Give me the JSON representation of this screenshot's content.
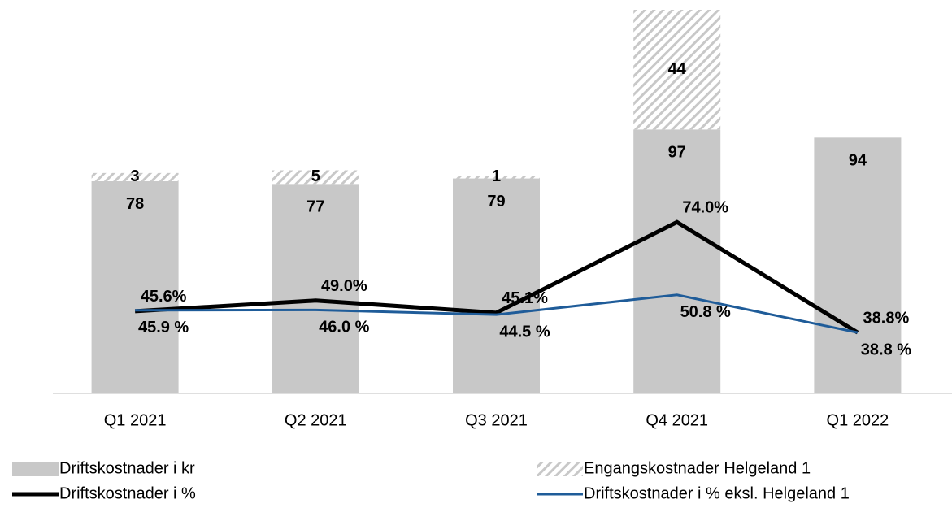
{
  "chart_data": {
    "type": "combo",
    "categories": [
      "Q1 2021",
      "Q2 2021",
      "Q3 2021",
      "Q4 2021",
      "Q1 2022"
    ],
    "ylim": [
      0,
      141
    ],
    "y2lim": [
      19.4,
      141.7
    ],
    "stacked": true,
    "series": [
      {
        "name": "Driftskostnader i kr",
        "type": "bar",
        "color": "#c8c8c8",
        "values": [
          78,
          77,
          79,
          97,
          94
        ]
      },
      {
        "name": "Engangskostnader Helgeland 1",
        "type": "bar",
        "color": "#c8c8c8",
        "pattern": "hatch",
        "values": [
          3,
          5,
          1,
          44,
          null
        ]
      },
      {
        "name": "Driftskostnader i %",
        "type": "line",
        "axis": "y2",
        "color": "#000000",
        "width": 5,
        "values": [
          45.6,
          49.0,
          45.1,
          74.0,
          38.8
        ],
        "value_labels": [
          "45.6%",
          "49.0%",
          "45.1%",
          "74.0%",
          "38.8%"
        ]
      },
      {
        "name": "Driftskostnader i % eksl. Helgeland 1",
        "type": "line",
        "axis": "y2",
        "color": "#1f5c99",
        "width": 3,
        "values": [
          45.9,
          46.0,
          44.5,
          50.8,
          38.8
        ],
        "value_labels": [
          "45.9 %",
          "46.0 %",
          "44.5 %",
          "50.8 %",
          "38.8 %"
        ]
      }
    ]
  }
}
